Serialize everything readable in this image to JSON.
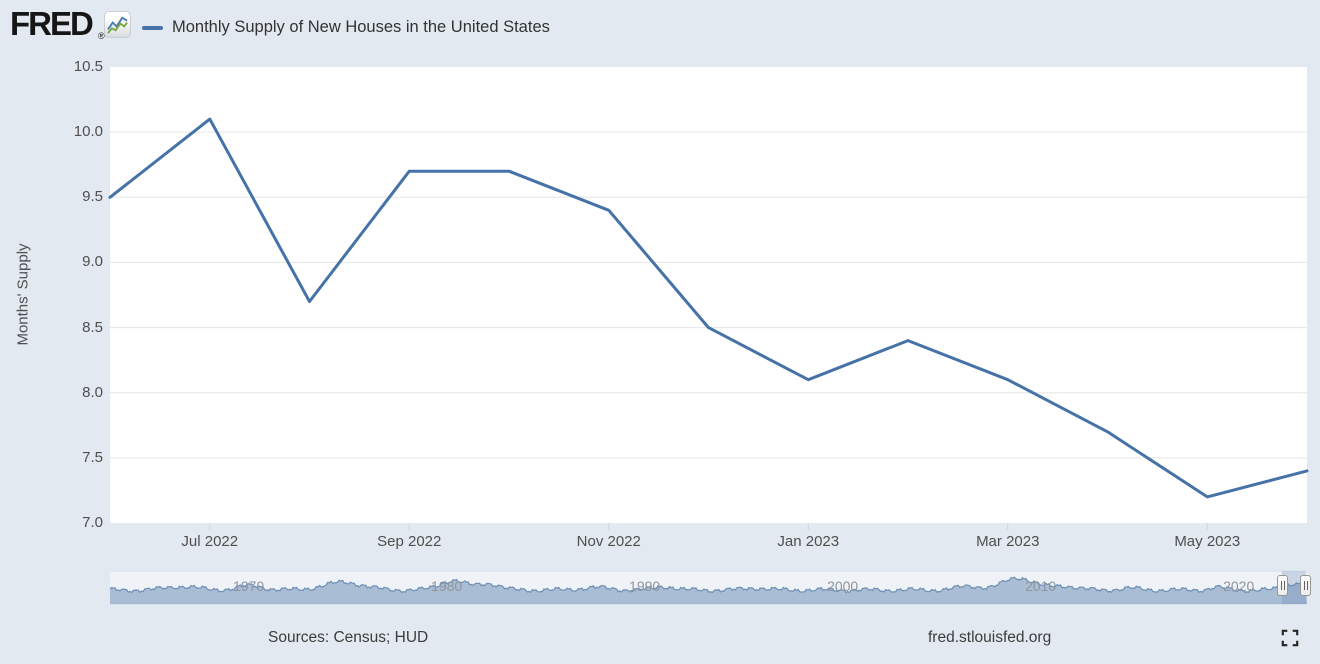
{
  "header": {
    "logo": {
      "text": "FRED",
      "registered": "®",
      "icon": "fred-sparkline-icon"
    },
    "legend": {
      "dash_color": "#4572a7",
      "label": "Monthly Supply of New Houses in the United States"
    }
  },
  "chart_data": {
    "type": "line",
    "title": "Monthly Supply of New Houses in the United States",
    "ylabel": "Months' Supply",
    "x": [
      "Jun 2022",
      "Jul 2022",
      "Aug 2022",
      "Sep 2022",
      "Oct 2022",
      "Nov 2022",
      "Dec 2022",
      "Jan 2023",
      "Feb 2023",
      "Mar 2023",
      "Apr 2023",
      "May 2023",
      "Jun 2023"
    ],
    "values": [
      9.5,
      10.1,
      8.7,
      9.7,
      9.7,
      9.4,
      8.5,
      8.1,
      8.4,
      8.1,
      7.7,
      7.2,
      7.4
    ],
    "ylim": [
      7.0,
      10.5
    ],
    "y_tick_step": 0.5,
    "y_tick_labels": [
      "10.5",
      "10.0",
      "9.5",
      "9.0",
      "8.5",
      "8.0",
      "7.5",
      "7.0"
    ],
    "x_tick_labels": [
      "Jul 2022",
      "Sep 2022",
      "Nov 2022",
      "Jan 2023",
      "Mar 2023",
      "May 2023"
    ],
    "x_tick_indices": [
      1,
      3,
      5,
      7,
      9,
      11
    ],
    "line_color": "#4572a7",
    "grid": "horizontal",
    "gridline_color": "#e6e6e6",
    "plot_background": "#ffffff",
    "legend_position": "top-left"
  },
  "navigator": {
    "type": "area",
    "role": "date-range-selector",
    "year_tick_labels": [
      "1970",
      "1980",
      "1990",
      "2000",
      "2010",
      "2020"
    ],
    "full_range": {
      "start_year": 1963.0,
      "end_year": 2023.45
    },
    "selected_range": {
      "start": "Jun 2022",
      "end": "Jun 2023"
    },
    "area_fill": "#a9bdd5",
    "area_line": "#6e8fb4",
    "notable_peak_years": [
      1974.8,
      1980.3,
      2008.9,
      2022.8
    ]
  },
  "footer": {
    "sources": "Sources: Census; HUD",
    "site": "fred.stlouisfed.org",
    "fullscreen_icon": "expand-corners"
  }
}
